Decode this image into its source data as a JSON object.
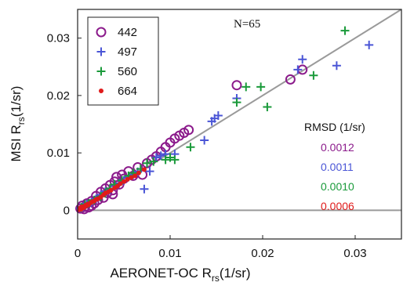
{
  "chart_data": {
    "type": "scatter",
    "xlabel": "AERONET-OC R",
    "xlabel_sub": "rs",
    "xlabel_unit": "(1/sr)",
    "ylabel": "MSI R",
    "ylabel_sub": "rs",
    "ylabel_unit": "(1/sr)",
    "xlim": [
      0,
      0.035
    ],
    "ylim": [
      -0.005,
      0.035
    ],
    "xticks": [
      0,
      0.01,
      0.02,
      0.03
    ],
    "xtick_labels": [
      "0",
      "0.01",
      "0.02",
      "0.03"
    ],
    "yticks": [
      0,
      0.01,
      0.02,
      0.03
    ],
    "ytick_labels": [
      "0",
      "0.01",
      "0.02",
      "0.03"
    ],
    "annotation": "N=65",
    "one_to_one_line": true,
    "zero_line": true,
    "legend_position": "top-left",
    "rmsd_title": "RMSD (1/sr)",
    "series": [
      {
        "name": "442",
        "marker": "open-circle",
        "color": "#8b1a8b",
        "rmsd": "0.0012",
        "points": [
          [
            0.0003,
            0.0003
          ],
          [
            0.0005,
            0.0008
          ],
          [
            0.0008,
            0.0006
          ],
          [
            0.001,
            0.0012
          ],
          [
            0.0012,
            0.0005
          ],
          [
            0.0015,
            0.0016
          ],
          [
            0.0018,
            0.0012
          ],
          [
            0.002,
            0.0025
          ],
          [
            0.0022,
            0.0018
          ],
          [
            0.0025,
            0.0032
          ],
          [
            0.0028,
            0.0022
          ],
          [
            0.003,
            0.0038
          ],
          [
            0.0032,
            0.003
          ],
          [
            0.0035,
            0.0044
          ],
          [
            0.0038,
            0.0035
          ],
          [
            0.004,
            0.005
          ],
          [
            0.0042,
            0.0058
          ],
          [
            0.0045,
            0.0045
          ],
          [
            0.0048,
            0.0062
          ],
          [
            0.005,
            0.0055
          ],
          [
            0.0055,
            0.0068
          ],
          [
            0.006,
            0.006
          ],
          [
            0.0065,
            0.0075
          ],
          [
            0.007,
            0.0062
          ],
          [
            0.0075,
            0.0082
          ],
          [
            0.008,
            0.0088
          ],
          [
            0.0085,
            0.0094
          ],
          [
            0.009,
            0.0102
          ],
          [
            0.0095,
            0.011
          ],
          [
            0.01,
            0.0118
          ],
          [
            0.0105,
            0.0125
          ],
          [
            0.011,
            0.013
          ],
          [
            0.0115,
            0.0135
          ],
          [
            0.012,
            0.014
          ],
          [
            0.0038,
            0.0028
          ],
          [
            0.0172,
            0.0218
          ],
          [
            0.023,
            0.0228
          ],
          [
            0.0243,
            0.0245
          ],
          [
            0.0015,
            0.0008
          ],
          [
            0.0007,
            0.0002
          ]
        ]
      },
      {
        "name": "497",
        "marker": "plus",
        "color": "#4a55d6",
        "rmsd": "0.0011",
        "points": [
          [
            0.0003,
            0.0004
          ],
          [
            0.0006,
            0.0006
          ],
          [
            0.001,
            0.0011
          ],
          [
            0.0015,
            0.0014
          ],
          [
            0.002,
            0.002
          ],
          [
            0.0025,
            0.0027
          ],
          [
            0.003,
            0.0033
          ],
          [
            0.0035,
            0.0036
          ],
          [
            0.004,
            0.0042
          ],
          [
            0.0045,
            0.0047
          ],
          [
            0.005,
            0.0052
          ],
          [
            0.0055,
            0.0058
          ],
          [
            0.006,
            0.0062
          ],
          [
            0.0065,
            0.0067
          ],
          [
            0.0072,
            0.0037
          ],
          [
            0.0078,
            0.0068
          ],
          [
            0.0085,
            0.0092
          ],
          [
            0.009,
            0.0095
          ],
          [
            0.0095,
            0.0098
          ],
          [
            0.0105,
            0.0098
          ],
          [
            0.0137,
            0.0122
          ],
          [
            0.0145,
            0.0155
          ],
          [
            0.0148,
            0.016
          ],
          [
            0.0152,
            0.0165
          ],
          [
            0.0172,
            0.0195
          ],
          [
            0.0243,
            0.0263
          ],
          [
            0.0238,
            0.0245
          ],
          [
            0.028,
            0.0252
          ],
          [
            0.0315,
            0.0288
          ]
        ]
      },
      {
        "name": "560",
        "marker": "plus",
        "color": "#1a9a3a",
        "rmsd": "0.0010",
        "points": [
          [
            0.0004,
            0.0005
          ],
          [
            0.0008,
            0.001
          ],
          [
            0.0012,
            0.0012
          ],
          [
            0.0018,
            0.0018
          ],
          [
            0.0025,
            0.0024
          ],
          [
            0.003,
            0.003
          ],
          [
            0.0035,
            0.0038
          ],
          [
            0.004,
            0.0045
          ],
          [
            0.0048,
            0.0052
          ],
          [
            0.0055,
            0.006
          ],
          [
            0.006,
            0.0065
          ],
          [
            0.0068,
            0.0072
          ],
          [
            0.0075,
            0.0082
          ],
          [
            0.0082,
            0.0085
          ],
          [
            0.0095,
            0.0088
          ],
          [
            0.01,
            0.0092
          ],
          [
            0.0105,
            0.0088
          ],
          [
            0.0122,
            0.011
          ],
          [
            0.0172,
            0.0188
          ],
          [
            0.0182,
            0.0215
          ],
          [
            0.0198,
            0.0215
          ],
          [
            0.0205,
            0.018
          ],
          [
            0.0255,
            0.0235
          ],
          [
            0.0289,
            0.0313
          ]
        ]
      },
      {
        "name": "664",
        "marker": "dot",
        "color": "#e01b1b",
        "rmsd": "0.0006",
        "points": [
          [
            0.0002,
            0.0001
          ],
          [
            0.0003,
            0.0003
          ],
          [
            0.0004,
            0.0002
          ],
          [
            0.0005,
            0.0005
          ],
          [
            0.0006,
            0.0004
          ],
          [
            0.0007,
            0.0007
          ],
          [
            0.0008,
            0.0006
          ],
          [
            0.0009,
            0.0009
          ],
          [
            0.001,
            0.0008
          ],
          [
            0.0011,
            0.0011
          ],
          [
            0.0012,
            0.001
          ],
          [
            0.0014,
            0.0013
          ],
          [
            0.0016,
            0.0015
          ],
          [
            0.0018,
            0.0016
          ],
          [
            0.002,
            0.0019
          ],
          [
            0.0022,
            0.002
          ],
          [
            0.0025,
            0.0023
          ],
          [
            0.0028,
            0.0027
          ],
          [
            0.003,
            0.003
          ],
          [
            0.0033,
            0.0032
          ],
          [
            0.0036,
            0.0035
          ],
          [
            0.004,
            0.0039
          ],
          [
            0.0043,
            0.0042
          ],
          [
            0.0046,
            0.0046
          ],
          [
            0.005,
            0.005
          ],
          [
            0.0054,
            0.0054
          ],
          [
            0.0058,
            0.0057
          ],
          [
            0.0062,
            0.006
          ],
          [
            0.0066,
            0.0065
          ],
          [
            0.0072,
            0.0071
          ],
          [
            0.0002,
            0.0003
          ],
          [
            0.0004,
            0.0006
          ]
        ]
      }
    ]
  }
}
